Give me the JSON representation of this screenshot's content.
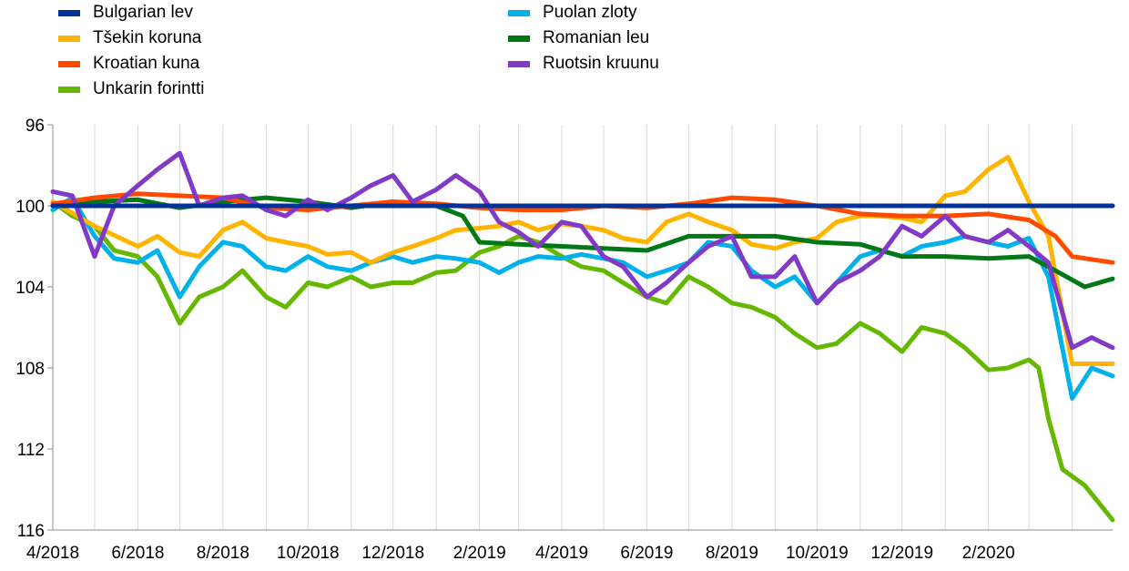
{
  "chart_data": {
    "type": "line",
    "title": "",
    "xlabel": "",
    "ylabel": "",
    "y_axis": {
      "reversed": true,
      "min": 96,
      "max": 116,
      "ticks": [
        96,
        100,
        104,
        108,
        112,
        116
      ]
    },
    "x_axis": {
      "ticks": [
        "4/2018",
        "6/2018",
        "8/2018",
        "10/2018",
        "12/2018",
        "2/2019",
        "4/2019",
        "6/2019",
        "8/2019",
        "10/2019",
        "12/2019",
        "2/2020"
      ],
      "range": [
        "4/2018",
        "4/2020"
      ]
    },
    "grid": {
      "vertical": true,
      "horizontal": false
    },
    "legend": {
      "position": "top",
      "columns": 2
    },
    "series": [
      {
        "name": "Bulgarian lev",
        "color": "#003299",
        "points": [
          [
            "2018-04-01",
            100.0
          ],
          [
            "2020-04-30",
            100.0
          ]
        ]
      },
      {
        "name": "Tšekin koruna",
        "color": "#FFB400",
        "points": [
          [
            "2018-04-01",
            99.8
          ],
          [
            "2018-05-01",
            101.0
          ],
          [
            "2018-06-01",
            102.0
          ],
          [
            "2018-06-15",
            101.5
          ],
          [
            "2018-07-01",
            102.3
          ],
          [
            "2018-07-15",
            102.5
          ],
          [
            "2018-08-01",
            101.2
          ],
          [
            "2018-08-15",
            100.8
          ],
          [
            "2018-09-01",
            101.6
          ],
          [
            "2018-09-15",
            101.8
          ],
          [
            "2018-10-01",
            102.0
          ],
          [
            "2018-10-15",
            102.4
          ],
          [
            "2018-11-01",
            102.3
          ],
          [
            "2018-11-15",
            102.8
          ],
          [
            "2018-12-01",
            102.3
          ],
          [
            "2018-12-15",
            102.0
          ],
          [
            "2019-01-01",
            101.6
          ],
          [
            "2019-01-15",
            101.2
          ],
          [
            "2019-02-01",
            101.1
          ],
          [
            "2019-02-15",
            101.0
          ],
          [
            "2019-03-01",
            100.8
          ],
          [
            "2019-03-15",
            101.2
          ],
          [
            "2019-04-01",
            100.9
          ],
          [
            "2019-04-15",
            101.0
          ],
          [
            "2019-05-01",
            101.2
          ],
          [
            "2019-05-15",
            101.6
          ],
          [
            "2019-06-01",
            101.8
          ],
          [
            "2019-06-15",
            100.8
          ],
          [
            "2019-07-01",
            100.4
          ],
          [
            "2019-07-15",
            100.8
          ],
          [
            "2019-08-01",
            101.2
          ],
          [
            "2019-08-15",
            101.9
          ],
          [
            "2019-09-01",
            102.1
          ],
          [
            "2019-09-15",
            101.8
          ],
          [
            "2019-10-01",
            101.6
          ],
          [
            "2019-10-15",
            100.8
          ],
          [
            "2019-11-01",
            100.5
          ],
          [
            "2019-11-15",
            100.5
          ],
          [
            "2019-12-01",
            100.6
          ],
          [
            "2019-12-15",
            100.8
          ],
          [
            "2020-01-01",
            99.5
          ],
          [
            "2020-01-15",
            99.3
          ],
          [
            "2020-02-01",
            98.2
          ],
          [
            "2020-02-15",
            97.6
          ],
          [
            "2020-03-01",
            99.8
          ],
          [
            "2020-03-15",
            101.5
          ],
          [
            "2020-04-01",
            107.8
          ],
          [
            "2020-04-30",
            107.8
          ]
        ]
      },
      {
        "name": "Kroatian kuna",
        "color": "#FF4B00",
        "points": [
          [
            "2018-04-01",
            99.9
          ],
          [
            "2018-05-01",
            99.6
          ],
          [
            "2018-06-01",
            99.4
          ],
          [
            "2018-07-01",
            99.5
          ],
          [
            "2018-08-01",
            99.6
          ],
          [
            "2018-09-01",
            100.1
          ],
          [
            "2018-10-01",
            100.2
          ],
          [
            "2018-11-01",
            100.0
          ],
          [
            "2018-12-01",
            99.8
          ],
          [
            "2019-01-01",
            99.9
          ],
          [
            "2019-02-01",
            100.1
          ],
          [
            "2019-03-01",
            100.2
          ],
          [
            "2019-04-01",
            100.2
          ],
          [
            "2019-05-01",
            100.0
          ],
          [
            "2019-06-01",
            100.1
          ],
          [
            "2019-07-01",
            99.9
          ],
          [
            "2019-08-01",
            99.6
          ],
          [
            "2019-09-01",
            99.7
          ],
          [
            "2019-10-01",
            100.0
          ],
          [
            "2019-11-01",
            100.4
          ],
          [
            "2019-12-01",
            100.5
          ],
          [
            "2020-01-01",
            100.5
          ],
          [
            "2020-02-01",
            100.4
          ],
          [
            "2020-03-01",
            100.7
          ],
          [
            "2020-03-20",
            101.5
          ],
          [
            "2020-04-01",
            102.5
          ],
          [
            "2020-04-30",
            102.8
          ]
        ]
      },
      {
        "name": "Unkarin forintti",
        "color": "#65B800",
        "points": [
          [
            "2018-04-01",
            99.8
          ],
          [
            "2018-04-15",
            100.5
          ],
          [
            "2018-05-01",
            101.0
          ],
          [
            "2018-05-15",
            102.2
          ],
          [
            "2018-06-01",
            102.5
          ],
          [
            "2018-06-15",
            103.5
          ],
          [
            "2018-07-01",
            105.8
          ],
          [
            "2018-07-15",
            104.5
          ],
          [
            "2018-08-01",
            104.0
          ],
          [
            "2018-08-15",
            103.2
          ],
          [
            "2018-09-01",
            104.5
          ],
          [
            "2018-09-15",
            105.0
          ],
          [
            "2018-10-01",
            103.8
          ],
          [
            "2018-10-15",
            104.0
          ],
          [
            "2018-11-01",
            103.5
          ],
          [
            "2018-11-15",
            104.0
          ],
          [
            "2018-12-01",
            103.8
          ],
          [
            "2018-12-15",
            103.8
          ],
          [
            "2019-01-01",
            103.3
          ],
          [
            "2019-01-15",
            103.2
          ],
          [
            "2019-02-01",
            102.3
          ],
          [
            "2019-02-15",
            102.0
          ],
          [
            "2019-03-01",
            101.5
          ],
          [
            "2019-03-15",
            101.8
          ],
          [
            "2019-04-01",
            102.5
          ],
          [
            "2019-04-15",
            103.0
          ],
          [
            "2019-05-01",
            103.2
          ],
          [
            "2019-05-15",
            103.8
          ],
          [
            "2019-06-01",
            104.5
          ],
          [
            "2019-06-15",
            104.8
          ],
          [
            "2019-07-01",
            103.5
          ],
          [
            "2019-07-15",
            104.0
          ],
          [
            "2019-08-01",
            104.8
          ],
          [
            "2019-08-15",
            105.0
          ],
          [
            "2019-09-01",
            105.5
          ],
          [
            "2019-09-15",
            106.3
          ],
          [
            "2019-10-01",
            107.0
          ],
          [
            "2019-10-15",
            106.8
          ],
          [
            "2019-11-01",
            105.8
          ],
          [
            "2019-11-15",
            106.3
          ],
          [
            "2019-12-01",
            107.2
          ],
          [
            "2019-12-15",
            106.0
          ],
          [
            "2020-01-01",
            106.3
          ],
          [
            "2020-01-15",
            107.0
          ],
          [
            "2020-02-01",
            108.1
          ],
          [
            "2020-02-15",
            108.0
          ],
          [
            "2020-03-01",
            107.6
          ],
          [
            "2020-03-08",
            108.0
          ],
          [
            "2020-03-15",
            110.5
          ],
          [
            "2020-03-25",
            113.0
          ],
          [
            "2020-04-10",
            113.8
          ],
          [
            "2020-04-30",
            115.5
          ]
        ]
      },
      {
        "name": "Puolan zloty",
        "color": "#00B1EA",
        "points": [
          [
            "2018-04-01",
            100.2
          ],
          [
            "2018-04-15",
            99.6
          ],
          [
            "2018-05-01",
            101.5
          ],
          [
            "2018-05-15",
            102.6
          ],
          [
            "2018-06-01",
            102.8
          ],
          [
            "2018-06-15",
            102.2
          ],
          [
            "2018-07-01",
            104.5
          ],
          [
            "2018-07-15",
            103.0
          ],
          [
            "2018-08-01",
            101.8
          ],
          [
            "2018-08-15",
            102.0
          ],
          [
            "2018-09-01",
            103.0
          ],
          [
            "2018-09-15",
            103.2
          ],
          [
            "2018-10-01",
            102.5
          ],
          [
            "2018-10-15",
            103.0
          ],
          [
            "2018-11-01",
            103.2
          ],
          [
            "2018-11-15",
            102.8
          ],
          [
            "2018-12-01",
            102.5
          ],
          [
            "2018-12-15",
            102.8
          ],
          [
            "2019-01-01",
            102.5
          ],
          [
            "2019-01-15",
            102.6
          ],
          [
            "2019-02-01",
            102.8
          ],
          [
            "2019-02-15",
            103.3
          ],
          [
            "2019-03-01",
            102.8
          ],
          [
            "2019-03-15",
            102.5
          ],
          [
            "2019-04-01",
            102.6
          ],
          [
            "2019-04-15",
            102.4
          ],
          [
            "2019-05-01",
            102.6
          ],
          [
            "2019-05-15",
            102.8
          ],
          [
            "2019-06-01",
            103.5
          ],
          [
            "2019-06-15",
            103.2
          ],
          [
            "2019-07-01",
            102.8
          ],
          [
            "2019-07-15",
            101.8
          ],
          [
            "2019-08-01",
            102.0
          ],
          [
            "2019-08-15",
            103.2
          ],
          [
            "2019-09-01",
            104.0
          ],
          [
            "2019-09-15",
            103.5
          ],
          [
            "2019-10-01",
            104.8
          ],
          [
            "2019-10-15",
            103.8
          ],
          [
            "2019-11-01",
            102.5
          ],
          [
            "2019-11-15",
            102.2
          ],
          [
            "2019-12-01",
            102.5
          ],
          [
            "2019-12-15",
            102.0
          ],
          [
            "2020-01-01",
            101.8
          ],
          [
            "2020-01-15",
            101.5
          ],
          [
            "2020-02-01",
            101.8
          ],
          [
            "2020-02-15",
            102.0
          ],
          [
            "2020-03-01",
            101.6
          ],
          [
            "2020-03-15",
            103.5
          ],
          [
            "2020-04-01",
            109.5
          ],
          [
            "2020-04-15",
            108.0
          ],
          [
            "2020-04-30",
            108.4
          ]
        ]
      },
      {
        "name": "Romanian leu",
        "color": "#007816",
        "points": [
          [
            "2018-04-01",
            100.0
          ],
          [
            "2018-05-01",
            99.8
          ],
          [
            "2018-06-01",
            99.7
          ],
          [
            "2018-07-01",
            100.1
          ],
          [
            "2018-08-01",
            99.8
          ],
          [
            "2018-09-01",
            99.6
          ],
          [
            "2018-10-01",
            99.8
          ],
          [
            "2018-11-01",
            100.1
          ],
          [
            "2018-12-01",
            99.8
          ],
          [
            "2019-01-01",
            100.0
          ],
          [
            "2019-01-20",
            100.5
          ],
          [
            "2019-02-01",
            101.8
          ],
          [
            "2019-03-01",
            101.9
          ],
          [
            "2019-04-01",
            102.0
          ],
          [
            "2019-05-01",
            102.1
          ],
          [
            "2019-06-01",
            102.2
          ],
          [
            "2019-07-01",
            101.5
          ],
          [
            "2019-08-01",
            101.5
          ],
          [
            "2019-09-01",
            101.5
          ],
          [
            "2019-10-01",
            101.8
          ],
          [
            "2019-11-01",
            101.9
          ],
          [
            "2019-12-01",
            102.5
          ],
          [
            "2020-01-01",
            102.5
          ],
          [
            "2020-02-01",
            102.6
          ],
          [
            "2020-03-01",
            102.5
          ],
          [
            "2020-03-20",
            103.2
          ],
          [
            "2020-04-10",
            104.0
          ],
          [
            "2020-04-30",
            103.6
          ]
        ]
      },
      {
        "name": "Ruotsin kruunu",
        "color": "#8139C6",
        "points": [
          [
            "2018-04-01",
            99.3
          ],
          [
            "2018-04-15",
            99.5
          ],
          [
            "2018-05-01",
            102.5
          ],
          [
            "2018-05-15",
            100.0
          ],
          [
            "2018-06-01",
            99.0
          ],
          [
            "2018-06-15",
            98.2
          ],
          [
            "2018-07-01",
            97.4
          ],
          [
            "2018-07-15",
            100.0
          ],
          [
            "2018-08-01",
            99.6
          ],
          [
            "2018-08-15",
            99.5
          ],
          [
            "2018-09-01",
            100.2
          ],
          [
            "2018-09-15",
            100.5
          ],
          [
            "2018-10-01",
            99.7
          ],
          [
            "2018-10-15",
            100.2
          ],
          [
            "2018-11-01",
            99.6
          ],
          [
            "2018-11-15",
            99.0
          ],
          [
            "2018-12-01",
            98.5
          ],
          [
            "2018-12-15",
            99.8
          ],
          [
            "2019-01-01",
            99.2
          ],
          [
            "2019-01-15",
            98.5
          ],
          [
            "2019-02-01",
            99.3
          ],
          [
            "2019-02-15",
            100.8
          ],
          [
            "2019-03-01",
            101.3
          ],
          [
            "2019-03-15",
            102.0
          ],
          [
            "2019-04-01",
            100.8
          ],
          [
            "2019-04-15",
            101.0
          ],
          [
            "2019-05-01",
            102.5
          ],
          [
            "2019-05-15",
            103.0
          ],
          [
            "2019-06-01",
            104.5
          ],
          [
            "2019-06-15",
            103.8
          ],
          [
            "2019-07-01",
            102.8
          ],
          [
            "2019-07-15",
            102.0
          ],
          [
            "2019-08-01",
            101.5
          ],
          [
            "2019-08-15",
            103.5
          ],
          [
            "2019-09-01",
            103.5
          ],
          [
            "2019-09-15",
            102.5
          ],
          [
            "2019-10-01",
            104.8
          ],
          [
            "2019-10-15",
            103.8
          ],
          [
            "2019-11-01",
            103.2
          ],
          [
            "2019-11-15",
            102.5
          ],
          [
            "2019-12-01",
            101.0
          ],
          [
            "2019-12-15",
            101.5
          ],
          [
            "2020-01-01",
            100.5
          ],
          [
            "2020-01-15",
            101.5
          ],
          [
            "2020-02-01",
            101.8
          ],
          [
            "2020-02-15",
            101.2
          ],
          [
            "2020-03-01",
            102.0
          ],
          [
            "2020-03-15",
            102.8
          ],
          [
            "2020-04-01",
            107.0
          ],
          [
            "2020-04-15",
            106.5
          ],
          [
            "2020-04-30",
            107.0
          ]
        ]
      }
    ]
  }
}
